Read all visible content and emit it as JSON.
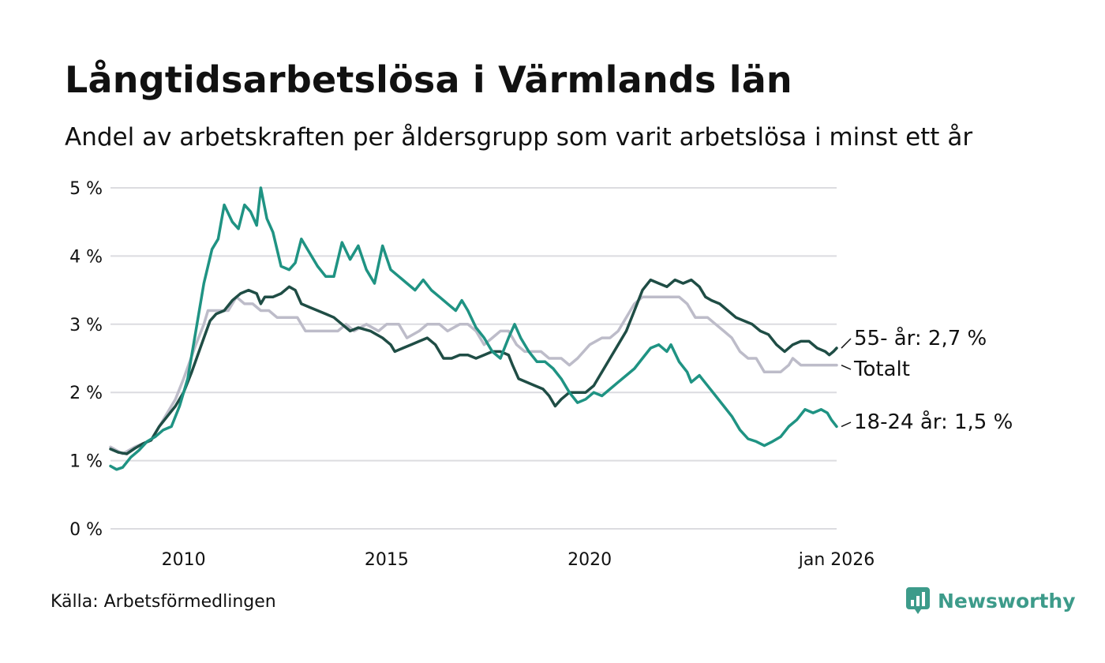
{
  "title": "Långtidsarbetslösa i Värmlands län",
  "subtitle": "Andel av arbetskraften per åldersgrupp som varit arbetslösa i minst ett år",
  "source": "Källa: Arbetsförmedlingen",
  "brand": "Newsworthy",
  "colors": {
    "age55": "#1f4d45",
    "total": "#bdbcc9",
    "age1824": "#1f9383",
    "grid": "#dcdce0",
    "brand": "#3d9b8a"
  },
  "chart_data": {
    "type": "line",
    "title": "Långtidsarbetslösa i Värmlands län",
    "xlabel": "",
    "ylabel": "",
    "xlim": [
      2008.2,
      2026.08
    ],
    "ylim": [
      0,
      5
    ],
    "grid": true,
    "y_ticks": [
      {
        "value": 0,
        "label": "0 %"
      },
      {
        "value": 1,
        "label": "1 %"
      },
      {
        "value": 2,
        "label": "2 %"
      },
      {
        "value": 3,
        "label": "3 %"
      },
      {
        "value": 4,
        "label": "4 %"
      },
      {
        "value": 5,
        "label": "5 %"
      }
    ],
    "x_ticks": [
      {
        "value": 2010,
        "label": "2010"
      },
      {
        "value": 2015,
        "label": "2015"
      },
      {
        "value": 2020,
        "label": "2020"
      },
      {
        "value": 2026.08,
        "label": "jan 2026"
      }
    ],
    "series": [
      {
        "name": "Totalt",
        "label": "Totalt",
        "color": "#bdbcc9",
        "points": [
          [
            2008.2,
            1.2
          ],
          [
            2008.5,
            1.1
          ],
          [
            2008.8,
            1.2
          ],
          [
            2009.2,
            1.3
          ],
          [
            2009.5,
            1.6
          ],
          [
            2009.8,
            1.9
          ],
          [
            2010.0,
            2.2
          ],
          [
            2010.3,
            2.7
          ],
          [
            2010.5,
            3.0
          ],
          [
            2010.6,
            3.2
          ],
          [
            2010.9,
            3.2
          ],
          [
            2011.1,
            3.2
          ],
          [
            2011.3,
            3.4
          ],
          [
            2011.5,
            3.3
          ],
          [
            2011.7,
            3.3
          ],
          [
            2011.9,
            3.2
          ],
          [
            2012.1,
            3.2
          ],
          [
            2012.3,
            3.1
          ],
          [
            2012.5,
            3.1
          ],
          [
            2012.8,
            3.1
          ],
          [
            2013.0,
            2.9
          ],
          [
            2013.3,
            2.9
          ],
          [
            2013.6,
            2.9
          ],
          [
            2013.8,
            2.9
          ],
          [
            2014.0,
            3.0
          ],
          [
            2014.2,
            2.9
          ],
          [
            2014.5,
            3.0
          ],
          [
            2014.8,
            2.9
          ],
          [
            2015.0,
            3.0
          ],
          [
            2015.3,
            3.0
          ],
          [
            2015.5,
            2.8
          ],
          [
            2015.8,
            2.9
          ],
          [
            2016.0,
            3.0
          ],
          [
            2016.3,
            3.0
          ],
          [
            2016.5,
            2.9
          ],
          [
            2016.8,
            3.0
          ],
          [
            2017.0,
            3.0
          ],
          [
            2017.2,
            2.9
          ],
          [
            2017.4,
            2.7
          ],
          [
            2017.6,
            2.8
          ],
          [
            2017.8,
            2.9
          ],
          [
            2018.0,
            2.9
          ],
          [
            2018.2,
            2.7
          ],
          [
            2018.4,
            2.6
          ],
          [
            2018.6,
            2.6
          ],
          [
            2018.8,
            2.6
          ],
          [
            2019.0,
            2.5
          ],
          [
            2019.3,
            2.5
          ],
          [
            2019.5,
            2.4
          ],
          [
            2019.7,
            2.5
          ],
          [
            2020.0,
            2.7
          ],
          [
            2020.3,
            2.8
          ],
          [
            2020.5,
            2.8
          ],
          [
            2020.7,
            2.9
          ],
          [
            2020.9,
            3.1
          ],
          [
            2021.1,
            3.3
          ],
          [
            2021.3,
            3.4
          ],
          [
            2021.6,
            3.4
          ],
          [
            2021.9,
            3.4
          ],
          [
            2022.2,
            3.4
          ],
          [
            2022.4,
            3.3
          ],
          [
            2022.6,
            3.1
          ],
          [
            2022.9,
            3.1
          ],
          [
            2023.1,
            3.0
          ],
          [
            2023.3,
            2.9
          ],
          [
            2023.5,
            2.8
          ],
          [
            2023.7,
            2.6
          ],
          [
            2023.9,
            2.5
          ],
          [
            2024.1,
            2.5
          ],
          [
            2024.3,
            2.3
          ],
          [
            2024.5,
            2.3
          ],
          [
            2024.7,
            2.3
          ],
          [
            2024.9,
            2.4
          ],
          [
            2025.0,
            2.5
          ],
          [
            2025.2,
            2.4
          ],
          [
            2025.5,
            2.4
          ],
          [
            2025.8,
            2.4
          ],
          [
            2026.08,
            2.4
          ]
        ]
      },
      {
        "name": "55- år",
        "label": "55- år: 2,7 %",
        "color": "#1f4d45",
        "points": [
          [
            2008.2,
            1.17
          ],
          [
            2008.4,
            1.12
          ],
          [
            2008.6,
            1.1
          ],
          [
            2008.8,
            1.18
          ],
          [
            2009.0,
            1.25
          ],
          [
            2009.2,
            1.3
          ],
          [
            2009.4,
            1.5
          ],
          [
            2009.6,
            1.65
          ],
          [
            2009.8,
            1.8
          ],
          [
            2010.0,
            2.0
          ],
          [
            2010.2,
            2.3
          ],
          [
            2010.35,
            2.55
          ],
          [
            2010.5,
            2.8
          ],
          [
            2010.65,
            3.05
          ],
          [
            2010.8,
            3.15
          ],
          [
            2011.0,
            3.2
          ],
          [
            2011.2,
            3.35
          ],
          [
            2011.4,
            3.45
          ],
          [
            2011.6,
            3.5
          ],
          [
            2011.8,
            3.45
          ],
          [
            2011.9,
            3.3
          ],
          [
            2012.0,
            3.4
          ],
          [
            2012.2,
            3.4
          ],
          [
            2012.4,
            3.45
          ],
          [
            2012.6,
            3.55
          ],
          [
            2012.75,
            3.5
          ],
          [
            2012.9,
            3.3
          ],
          [
            2013.1,
            3.25
          ],
          [
            2013.3,
            3.2
          ],
          [
            2013.5,
            3.15
          ],
          [
            2013.7,
            3.1
          ],
          [
            2013.9,
            3.0
          ],
          [
            2014.1,
            2.9
          ],
          [
            2014.3,
            2.95
          ],
          [
            2014.6,
            2.9
          ],
          [
            2014.9,
            2.8
          ],
          [
            2015.1,
            2.7
          ],
          [
            2015.2,
            2.6
          ],
          [
            2015.4,
            2.65
          ],
          [
            2015.6,
            2.7
          ],
          [
            2015.8,
            2.75
          ],
          [
            2016.0,
            2.8
          ],
          [
            2016.2,
            2.7
          ],
          [
            2016.4,
            2.5
          ],
          [
            2016.6,
            2.5
          ],
          [
            2016.8,
            2.55
          ],
          [
            2017.0,
            2.55
          ],
          [
            2017.2,
            2.5
          ],
          [
            2017.4,
            2.55
          ],
          [
            2017.6,
            2.6
          ],
          [
            2017.8,
            2.6
          ],
          [
            2018.0,
            2.55
          ],
          [
            2018.1,
            2.4
          ],
          [
            2018.25,
            2.2
          ],
          [
            2018.45,
            2.15
          ],
          [
            2018.65,
            2.1
          ],
          [
            2018.85,
            2.05
          ],
          [
            2019.0,
            1.95
          ],
          [
            2019.15,
            1.8
          ],
          [
            2019.3,
            1.9
          ],
          [
            2019.5,
            2.0
          ],
          [
            2019.7,
            2.0
          ],
          [
            2019.9,
            2.0
          ],
          [
            2020.1,
            2.1
          ],
          [
            2020.3,
            2.3
          ],
          [
            2020.5,
            2.5
          ],
          [
            2020.7,
            2.7
          ],
          [
            2020.9,
            2.9
          ],
          [
            2021.1,
            3.2
          ],
          [
            2021.3,
            3.5
          ],
          [
            2021.5,
            3.65
          ],
          [
            2021.7,
            3.6
          ],
          [
            2021.9,
            3.55
          ],
          [
            2022.1,
            3.65
          ],
          [
            2022.3,
            3.6
          ],
          [
            2022.5,
            3.65
          ],
          [
            2022.7,
            3.55
          ],
          [
            2022.85,
            3.4
          ],
          [
            2023.0,
            3.35
          ],
          [
            2023.2,
            3.3
          ],
          [
            2023.4,
            3.2
          ],
          [
            2023.6,
            3.1
          ],
          [
            2023.8,
            3.05
          ],
          [
            2024.0,
            3.0
          ],
          [
            2024.2,
            2.9
          ],
          [
            2024.4,
            2.85
          ],
          [
            2024.6,
            2.7
          ],
          [
            2024.8,
            2.6
          ],
          [
            2025.0,
            2.7
          ],
          [
            2025.2,
            2.75
          ],
          [
            2025.4,
            2.75
          ],
          [
            2025.6,
            2.65
          ],
          [
            2025.8,
            2.6
          ],
          [
            2025.9,
            2.55
          ],
          [
            2026.0,
            2.6
          ],
          [
            2026.08,
            2.65
          ]
        ]
      },
      {
        "name": "18-24 år",
        "label": "18-24 år: 1,5 %",
        "color": "#1f9383",
        "points": [
          [
            2008.2,
            0.92
          ],
          [
            2008.35,
            0.87
          ],
          [
            2008.5,
            0.9
          ],
          [
            2008.7,
            1.05
          ],
          [
            2008.9,
            1.15
          ],
          [
            2009.1,
            1.28
          ],
          [
            2009.3,
            1.35
          ],
          [
            2009.5,
            1.45
          ],
          [
            2009.7,
            1.5
          ],
          [
            2009.9,
            1.8
          ],
          [
            2010.1,
            2.2
          ],
          [
            2010.3,
            2.9
          ],
          [
            2010.5,
            3.6
          ],
          [
            2010.7,
            4.1
          ],
          [
            2010.85,
            4.25
          ],
          [
            2011.0,
            4.75
          ],
          [
            2011.2,
            4.5
          ],
          [
            2011.35,
            4.4
          ],
          [
            2011.5,
            4.75
          ],
          [
            2011.65,
            4.65
          ],
          [
            2011.8,
            4.45
          ],
          [
            2011.9,
            5.0
          ],
          [
            2012.05,
            4.55
          ],
          [
            2012.2,
            4.35
          ],
          [
            2012.4,
            3.85
          ],
          [
            2012.6,
            3.8
          ],
          [
            2012.75,
            3.9
          ],
          [
            2012.9,
            4.25
          ],
          [
            2013.1,
            4.05
          ],
          [
            2013.3,
            3.85
          ],
          [
            2013.5,
            3.7
          ],
          [
            2013.7,
            3.7
          ],
          [
            2013.9,
            4.2
          ],
          [
            2014.1,
            3.95
          ],
          [
            2014.3,
            4.15
          ],
          [
            2014.5,
            3.8
          ],
          [
            2014.7,
            3.6
          ],
          [
            2014.9,
            4.15
          ],
          [
            2015.1,
            3.8
          ],
          [
            2015.3,
            3.7
          ],
          [
            2015.5,
            3.6
          ],
          [
            2015.7,
            3.5
          ],
          [
            2015.9,
            3.65
          ],
          [
            2016.1,
            3.5
          ],
          [
            2016.3,
            3.4
          ],
          [
            2016.5,
            3.3
          ],
          [
            2016.7,
            3.2
          ],
          [
            2016.85,
            3.35
          ],
          [
            2017.0,
            3.2
          ],
          [
            2017.2,
            2.95
          ],
          [
            2017.4,
            2.8
          ],
          [
            2017.6,
            2.6
          ],
          [
            2017.8,
            2.5
          ],
          [
            2018.0,
            2.8
          ],
          [
            2018.15,
            3.0
          ],
          [
            2018.3,
            2.8
          ],
          [
            2018.5,
            2.6
          ],
          [
            2018.7,
            2.45
          ],
          [
            2018.9,
            2.45
          ],
          [
            2019.1,
            2.35
          ],
          [
            2019.3,
            2.2
          ],
          [
            2019.5,
            2.0
          ],
          [
            2019.7,
            1.85
          ],
          [
            2019.9,
            1.9
          ],
          [
            2020.1,
            2.0
          ],
          [
            2020.3,
            1.95
          ],
          [
            2020.5,
            2.05
          ],
          [
            2020.7,
            2.15
          ],
          [
            2020.9,
            2.25
          ],
          [
            2021.1,
            2.35
          ],
          [
            2021.3,
            2.5
          ],
          [
            2021.5,
            2.65
          ],
          [
            2021.7,
            2.7
          ],
          [
            2021.9,
            2.6
          ],
          [
            2022.0,
            2.7
          ],
          [
            2022.2,
            2.45
          ],
          [
            2022.4,
            2.3
          ],
          [
            2022.5,
            2.15
          ],
          [
            2022.7,
            2.25
          ],
          [
            2022.9,
            2.1
          ],
          [
            2023.1,
            1.95
          ],
          [
            2023.3,
            1.8
          ],
          [
            2023.5,
            1.65
          ],
          [
            2023.7,
            1.45
          ],
          [
            2023.9,
            1.32
          ],
          [
            2024.1,
            1.28
          ],
          [
            2024.3,
            1.22
          ],
          [
            2024.5,
            1.28
          ],
          [
            2024.7,
            1.35
          ],
          [
            2024.9,
            1.5
          ],
          [
            2025.1,
            1.6
          ],
          [
            2025.3,
            1.75
          ],
          [
            2025.5,
            1.7
          ],
          [
            2025.7,
            1.75
          ],
          [
            2025.85,
            1.7
          ],
          [
            2025.95,
            1.6
          ],
          [
            2026.08,
            1.5
          ]
        ]
      }
    ]
  }
}
